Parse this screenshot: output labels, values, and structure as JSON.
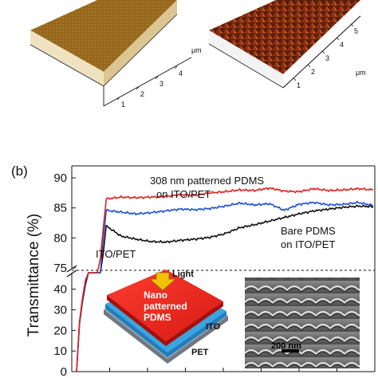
{
  "panel_a": {
    "left_axis": {
      "unit": "μm",
      "ticks": [
        "1",
        "2",
        "3",
        "4"
      ]
    },
    "right_axis": {
      "unit": "μm",
      "ticks": [
        "1",
        "2",
        "3",
        "4",
        "5"
      ]
    }
  },
  "panel_b": {
    "panel_label": "(b)",
    "annotations": {
      "patterned_line1": "308 nm patterned PDMS",
      "patterned_line2": "on ITO/PET",
      "bare_line1": "Bare PDMS",
      "bare_line2": "on ITO/PET",
      "ito": "ITO/PET"
    },
    "inset_left": {
      "light": "Light",
      "pdms_line1": "Nano",
      "pdms_line2": "patterned",
      "pdms_line3": "PDMS",
      "ito": "ITO",
      "pet": "PET"
    },
    "inset_right": {
      "scale_bar": "200 nm"
    }
  },
  "chart_data": {
    "type": "line",
    "ylabel": "Transmittance (%)",
    "xlabel": "",
    "yticks_upper": [
      "75",
      "80",
      "85",
      "90"
    ],
    "yticks_lower": [
      "0",
      "10",
      "20",
      "30",
      "40"
    ],
    "ylim_upper": [
      75,
      92
    ],
    "ylim_lower": [
      0,
      48
    ],
    "axis_break": true,
    "x": [
      0,
      0.05,
      0.1,
      0.15,
      0.2,
      0.25,
      0.3,
      0.35,
      0.4,
      0.45,
      0.5,
      0.55,
      0.6,
      0.65,
      0.7,
      0.75,
      0.8,
      0.85,
      0.9,
      0.95,
      1.0
    ],
    "series": [
      {
        "color": "#e32222",
        "values": [
          0,
          60,
          86.5,
          86.8,
          86.7,
          86.8,
          86.9,
          87.2,
          87.1,
          87.5,
          87.7,
          88.0,
          87.9,
          88.3,
          87.8,
          87.7,
          88.2,
          87.9,
          88.0,
          88.2,
          88.0
        ]
      },
      {
        "color": "#1f4fd6",
        "values": [
          0,
          58,
          84.6,
          84.3,
          84.0,
          84.2,
          84.5,
          84.8,
          84.7,
          84.9,
          85.3,
          85.8,
          85.5,
          85.7,
          84.6,
          85.6,
          85.9,
          85.5,
          85.6,
          85.9,
          85.4
        ]
      },
      {
        "color": "#111111",
        "values": [
          0,
          56,
          82.0,
          80.3,
          79.8,
          79.4,
          79.3,
          79.6,
          79.8,
          80.1,
          80.7,
          81.7,
          82.2,
          82.8,
          83.4,
          84.0,
          84.5,
          84.8,
          85.1,
          85.3,
          85.2
        ]
      }
    ]
  }
}
